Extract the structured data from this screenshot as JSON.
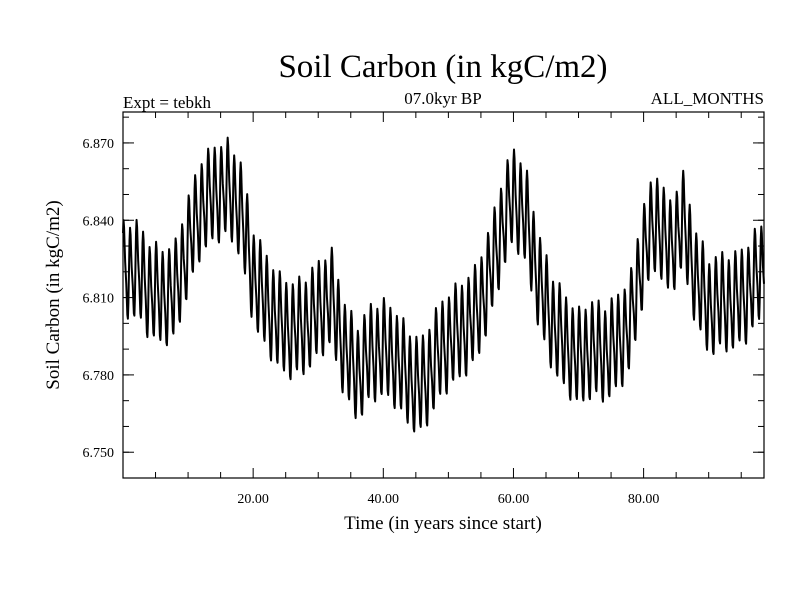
{
  "chart_data": {
    "type": "line",
    "title": "Soil Carbon (in kgC/m2)",
    "subtitle_left": "Expt = tebkh",
    "subtitle_center": "07.0kyr BP",
    "subtitle_right": "ALL_MONTHS",
    "xlabel": "Time (in years since start)",
    "ylabel": "Soil Carbon (in kgC/m2)",
    "xlim": [
      0.0,
      98.5
    ],
    "ylim": [
      6.74,
      6.882
    ],
    "x_ticks": [
      20,
      40,
      60,
      80
    ],
    "x_tick_labels": [
      "20.00",
      "40.00",
      "60.00",
      "80.00"
    ],
    "y_ticks": [
      6.75,
      6.78,
      6.81,
      6.84,
      6.87
    ],
    "y_tick_labels": [
      "6.750",
      "6.780",
      "6.810",
      "6.840",
      "6.870"
    ],
    "series": [
      {
        "name": "Soil Carbon",
        "sampling": "one value per month",
        "envelope_note": "seasonal cycle oscillates about this yearly trend",
        "seasonal_amplitude": 0.016,
        "trend_x": [
          0,
          2,
          4,
          6,
          8,
          10,
          12,
          14,
          16,
          18,
          20,
          22,
          24,
          26,
          28,
          30,
          32,
          34,
          36,
          38,
          40,
          42,
          44,
          46,
          48,
          50,
          52,
          54,
          56,
          58,
          60,
          62,
          64,
          66,
          68,
          70,
          72,
          74,
          76,
          78,
          80,
          82,
          84,
          86,
          88,
          90,
          92,
          94,
          96,
          98.5
        ],
        "trend_y": [
          6.82,
          6.821,
          6.813,
          6.81,
          6.812,
          6.83,
          6.845,
          6.85,
          6.852,
          6.845,
          6.818,
          6.808,
          6.8,
          6.797,
          6.799,
          6.805,
          6.81,
          6.79,
          6.78,
          6.788,
          6.79,
          6.786,
          6.778,
          6.775,
          6.786,
          6.793,
          6.797,
          6.802,
          6.815,
          6.835,
          6.85,
          6.84,
          6.815,
          6.8,
          6.792,
          6.786,
          6.79,
          6.788,
          6.792,
          6.8,
          6.828,
          6.84,
          6.828,
          6.84,
          6.818,
          6.806,
          6.808,
          6.808,
          6.812,
          6.822
        ]
      }
    ]
  }
}
